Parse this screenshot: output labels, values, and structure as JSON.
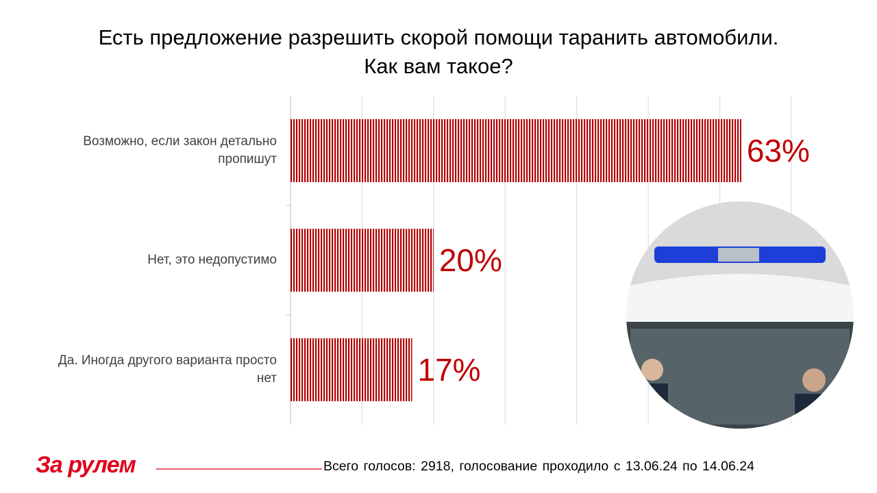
{
  "chart_data": {
    "type": "bar",
    "orientation": "horizontal",
    "title": "Есть предложение разрешить скорой помощи таранить автомобили. Как вам такое?",
    "categories": [
      "Возможно, если закон детально пропишут",
      "Нет, это недопустимо",
      "Да. Иногда другого варианта просто нет"
    ],
    "values": [
      63,
      20,
      17
    ],
    "value_labels": [
      "63%",
      "20%",
      "17%"
    ],
    "color": "#b00000",
    "xlim": [
      0,
      70
    ],
    "xticks": [
      0,
      10,
      20,
      30,
      40,
      50,
      60,
      70
    ],
    "grid": true
  },
  "footer": {
    "logo": "За рулем",
    "note": "Всего голосов: 2918, голосование проходило с 13.06.24 по 14.06.24"
  }
}
